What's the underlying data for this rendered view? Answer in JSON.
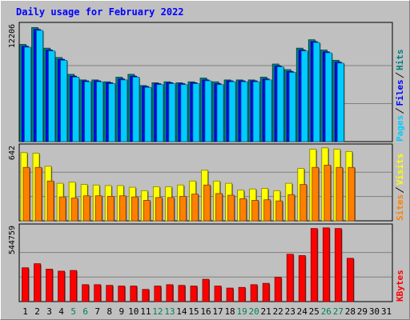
{
  "chart_data": {
    "type": "bar",
    "title": "Daily usage for February 2022",
    "x": [
      "1",
      "2",
      "3",
      "4",
      "5",
      "6",
      "7",
      "8",
      "9",
      "10",
      "11",
      "12",
      "13",
      "14",
      "15",
      "16",
      "17",
      "18",
      "19",
      "20",
      "21",
      "22",
      "23",
      "24",
      "25",
      "26",
      "27",
      "28",
      "29",
      "30",
      "31"
    ],
    "weekend_days": [
      "5",
      "6",
      "12",
      "13",
      "19",
      "20",
      "26",
      "27"
    ],
    "panels": [
      {
        "ytick": "12206",
        "ymax": 12206,
        "series": [
          {
            "name": "Hits",
            "color": "#008080",
            "values": [
              10400,
              12206,
              10000,
              9000,
              7200,
              6600,
              6600,
              6400,
              6900,
              7200,
              6000,
              6300,
              6400,
              6300,
              6400,
              6800,
              6400,
              6600,
              6600,
              6600,
              6900,
              8300,
              7700,
              10000,
              10900,
              9800,
              8700,
              0,
              0,
              0,
              0
            ]
          },
          {
            "name": "Files",
            "color": "#0000ff",
            "values": [
              10200,
              12000,
              9800,
              8800,
              7000,
              6500,
              6500,
              6300,
              6700,
              7000,
              5900,
              6200,
              6300,
              6200,
              6300,
              6600,
              6200,
              6500,
              6500,
              6500,
              6700,
              8100,
              7500,
              9800,
              10700,
              9600,
              8500,
              0,
              0,
              0,
              0
            ]
          },
          {
            "name": "Pages",
            "color": "#00ccff",
            "values": [
              10100,
              11900,
              9700,
              8700,
              6900,
              6400,
              6400,
              6200,
              6600,
              6900,
              5800,
              6100,
              6200,
              6100,
              6200,
              6500,
              6100,
              6400,
              6400,
              6400,
              6600,
              8000,
              7400,
              9700,
              10600,
              9500,
              8400,
              0,
              0,
              0,
              0
            ]
          }
        ]
      },
      {
        "ytick": "642",
        "ymax": 642,
        "series": [
          {
            "name": "Visits",
            "color": "#ffff00",
            "values": [
              600,
              595,
              480,
              330,
              340,
              320,
              315,
              310,
              310,
              295,
              265,
              300,
              300,
              315,
              350,
              445,
              350,
              330,
              270,
              280,
              285,
              265,
              330,
              460,
              630,
              642,
              630,
              610,
              0,
              0,
              0
            ]
          },
          {
            "name": "Sites",
            "color": "#ff8000",
            "values": [
              470,
              470,
              350,
              210,
              200,
              220,
              220,
              215,
              220,
              210,
              180,
              205,
              205,
              215,
              235,
              315,
              240,
              225,
              195,
              180,
              185,
              175,
              230,
              320,
              470,
              490,
              470,
              470,
              0,
              0,
              0
            ]
          }
        ]
      },
      {
        "ytick": "544759",
        "ymax": 544759,
        "series": [
          {
            "name": "KBytes",
            "color": "#ff0000",
            "values": [
              250000,
              280000,
              240000,
              225000,
              230000,
              125000,
              125000,
              120000,
              115000,
              115000,
              90000,
              115000,
              125000,
              120000,
              115000,
              165000,
              115000,
              100000,
              105000,
              125000,
              135000,
              180000,
              350000,
              340000,
              540000,
              544759,
              540000,
              320000,
              0,
              0,
              0
            ]
          }
        ]
      }
    ]
  }
}
